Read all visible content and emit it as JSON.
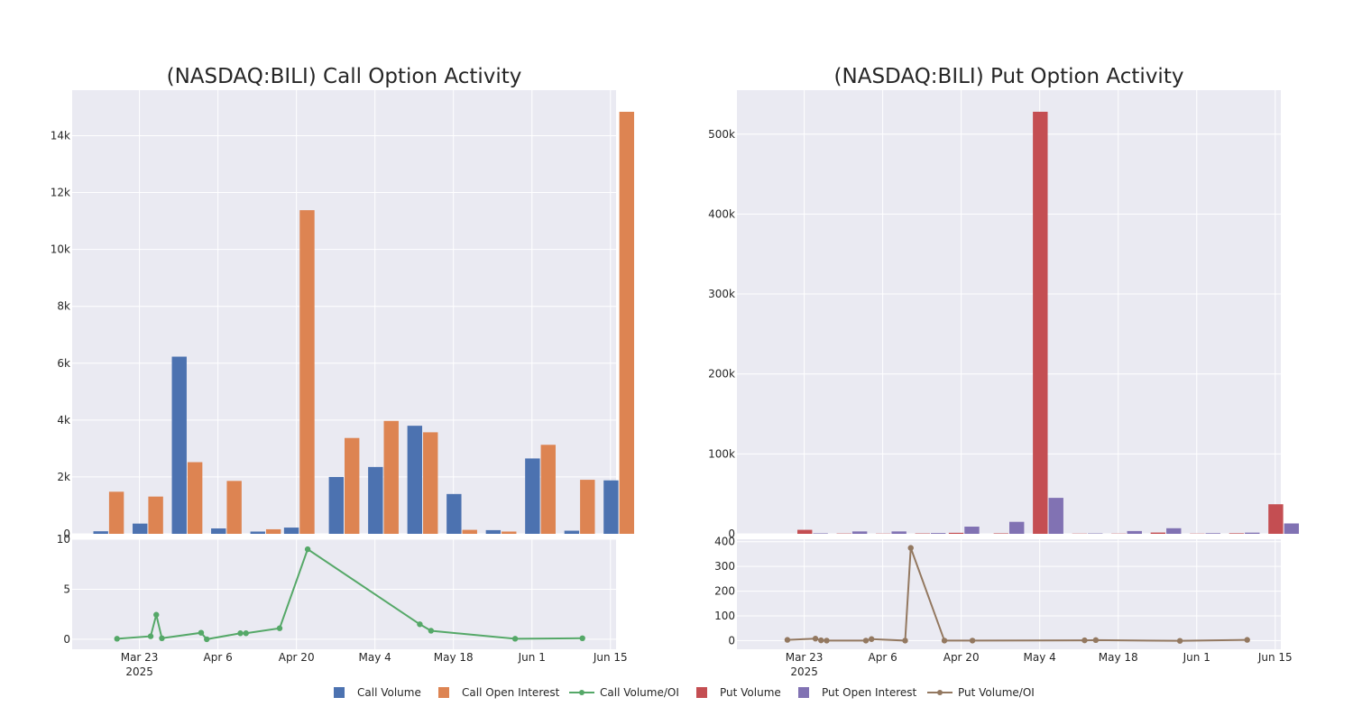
{
  "colors": {
    "call_volume": "#4c72b0",
    "call_oi": "#dd8452",
    "call_ratio": "#55a868",
    "put_volume": "#c44e52",
    "put_oi": "#8172b3",
    "put_ratio": "#937860",
    "plot_bg": "#eaeaf2",
    "grid": "#ffffff",
    "text": "#262626"
  },
  "legend": [
    {
      "label": "Call Volume",
      "kind": "square",
      "color_key": "call_volume"
    },
    {
      "label": "Call Open Interest",
      "kind": "square",
      "color_key": "call_oi"
    },
    {
      "label": "Call Volume/OI",
      "kind": "line",
      "color_key": "call_ratio"
    },
    {
      "label": "Put Volume",
      "kind": "square",
      "color_key": "put_volume"
    },
    {
      "label": "Put Open Interest",
      "kind": "square",
      "color_key": "put_oi"
    },
    {
      "label": "Put Volume/OI",
      "kind": "line",
      "color_key": "put_ratio"
    }
  ],
  "chart_data": [
    {
      "id": "call-bars",
      "type": "bar",
      "title": "(NASDAQ:BILI) Call Option Activity",
      "categories": [
        "2025-03-14",
        "2025-03-21",
        "2025-03-28",
        "2025-04-04",
        "2025-04-11",
        "2025-04-17",
        "2025-04-25",
        "2025-05-02",
        "2025-05-09",
        "2025-05-16",
        "2025-05-23",
        "2025-05-30",
        "2025-06-06",
        "2025-06-13"
      ],
      "series": [
        {
          "name": "Call Volume",
          "color_key": "call_volume",
          "values": [
            90,
            360,
            6230,
            190,
            80,
            220,
            2000,
            2350,
            3800,
            1400,
            130,
            2650,
            110,
            1880
          ]
        },
        {
          "name": "Call Open Interest",
          "color_key": "call_oi",
          "values": [
            1480,
            1310,
            2520,
            1860,
            160,
            11380,
            3370,
            3970,
            3570,
            140,
            80,
            3130,
            1900,
            14840
          ]
        }
      ],
      "ylim": [
        0,
        15600
      ],
      "yticks": [
        0,
        2000,
        4000,
        6000,
        8000,
        10000,
        12000,
        14000
      ],
      "ytick_labels": [
        "0",
        "2k",
        "4k",
        "6k",
        "8k",
        "10k",
        "12k",
        "14k"
      ]
    },
    {
      "id": "call-ratio",
      "type": "line",
      "name": "Call Volume/OI",
      "color_key": "call_ratio",
      "points": [
        {
          "x": "2025-03-19",
          "y": 0.05
        },
        {
          "x": "2025-03-25",
          "y": 0.3
        },
        {
          "x": "2025-03-26",
          "y": 2.45
        },
        {
          "x": "2025-03-27",
          "y": 0.1
        },
        {
          "x": "2025-04-03",
          "y": 0.65
        },
        {
          "x": "2025-04-04",
          "y": 0.0
        },
        {
          "x": "2025-04-10",
          "y": 0.6
        },
        {
          "x": "2025-04-11",
          "y": 0.6
        },
        {
          "x": "2025-04-17",
          "y": 1.1
        },
        {
          "x": "2025-04-22",
          "y": 9.0
        },
        {
          "x": "2025-05-12",
          "y": 1.5
        },
        {
          "x": "2025-05-14",
          "y": 0.85
        },
        {
          "x": "2025-05-29",
          "y": 0.05
        },
        {
          "x": "2025-06-10",
          "y": 0.1
        }
      ],
      "ylim": [
        -1,
        10
      ],
      "yticks": [
        0,
        5,
        10
      ],
      "ytick_labels": [
        "0",
        "5",
        "10"
      ]
    },
    {
      "id": "put-bars",
      "type": "bar",
      "title": "(NASDAQ:BILI) Put Option Activity",
      "categories": [
        "2025-03-14",
        "2025-03-21",
        "2025-03-28",
        "2025-04-04",
        "2025-04-11",
        "2025-04-17",
        "2025-04-25",
        "2025-05-02",
        "2025-05-09",
        "2025-05-16",
        "2025-05-23",
        "2025-05-30",
        "2025-06-06",
        "2025-06-13"
      ],
      "series": [
        {
          "name": "Put Volume",
          "color_key": "put_volume",
          "values": [
            0,
            5000,
            400,
            300,
            500,
            1300,
            600,
            528000,
            300,
            300,
            1600,
            300,
            700,
            37000
          ]
        },
        {
          "name": "Put Open Interest",
          "color_key": "put_oi",
          "values": [
            0,
            600,
            3000,
            3000,
            1000,
            9000,
            15000,
            45000,
            500,
            3500,
            7000,
            800,
            1500,
            13000
          ]
        }
      ],
      "ylim": [
        0,
        555000
      ],
      "yticks": [
        0,
        100000,
        200000,
        300000,
        400000,
        500000
      ],
      "ytick_labels": [
        "0",
        "100k",
        "200k",
        "300k",
        "400k",
        "500k"
      ]
    },
    {
      "id": "put-ratio",
      "type": "line",
      "name": "Put Volume/OI",
      "color_key": "put_ratio",
      "points": [
        {
          "x": "2025-03-20",
          "y": 3
        },
        {
          "x": "2025-03-25",
          "y": 8
        },
        {
          "x": "2025-03-26",
          "y": 1
        },
        {
          "x": "2025-03-27",
          "y": 0
        },
        {
          "x": "2025-04-03",
          "y": 0
        },
        {
          "x": "2025-04-04",
          "y": 6
        },
        {
          "x": "2025-04-10",
          "y": 0
        },
        {
          "x": "2025-04-11",
          "y": 375
        },
        {
          "x": "2025-04-17",
          "y": 0
        },
        {
          "x": "2025-04-22",
          "y": 0
        },
        {
          "x": "2025-05-12",
          "y": 1
        },
        {
          "x": "2025-05-14",
          "y": 2
        },
        {
          "x": "2025-05-29",
          "y": -1
        },
        {
          "x": "2025-06-10",
          "y": 3
        }
      ],
      "ylim": [
        -35,
        410
      ],
      "yticks": [
        0,
        100,
        200,
        300,
        400
      ],
      "ytick_labels": [
        "0",
        "100",
        "200",
        "300",
        "400"
      ]
    }
  ],
  "x_axis": {
    "range": [
      "2025-03-11",
      "2025-06-16"
    ],
    "ticks": [
      {
        "date": "2025-03-23",
        "label": "Mar 23",
        "sublabel": "2025"
      },
      {
        "date": "2025-04-06",
        "label": "Apr 6",
        "sublabel": ""
      },
      {
        "date": "2025-04-20",
        "label": "Apr 20",
        "sublabel": ""
      },
      {
        "date": "2025-05-04",
        "label": "May 4",
        "sublabel": ""
      },
      {
        "date": "2025-05-18",
        "label": "May 18",
        "sublabel": ""
      },
      {
        "date": "2025-06-01",
        "label": "Jun 1",
        "sublabel": ""
      },
      {
        "date": "2025-06-15",
        "label": "Jun 15",
        "sublabel": ""
      }
    ]
  }
}
